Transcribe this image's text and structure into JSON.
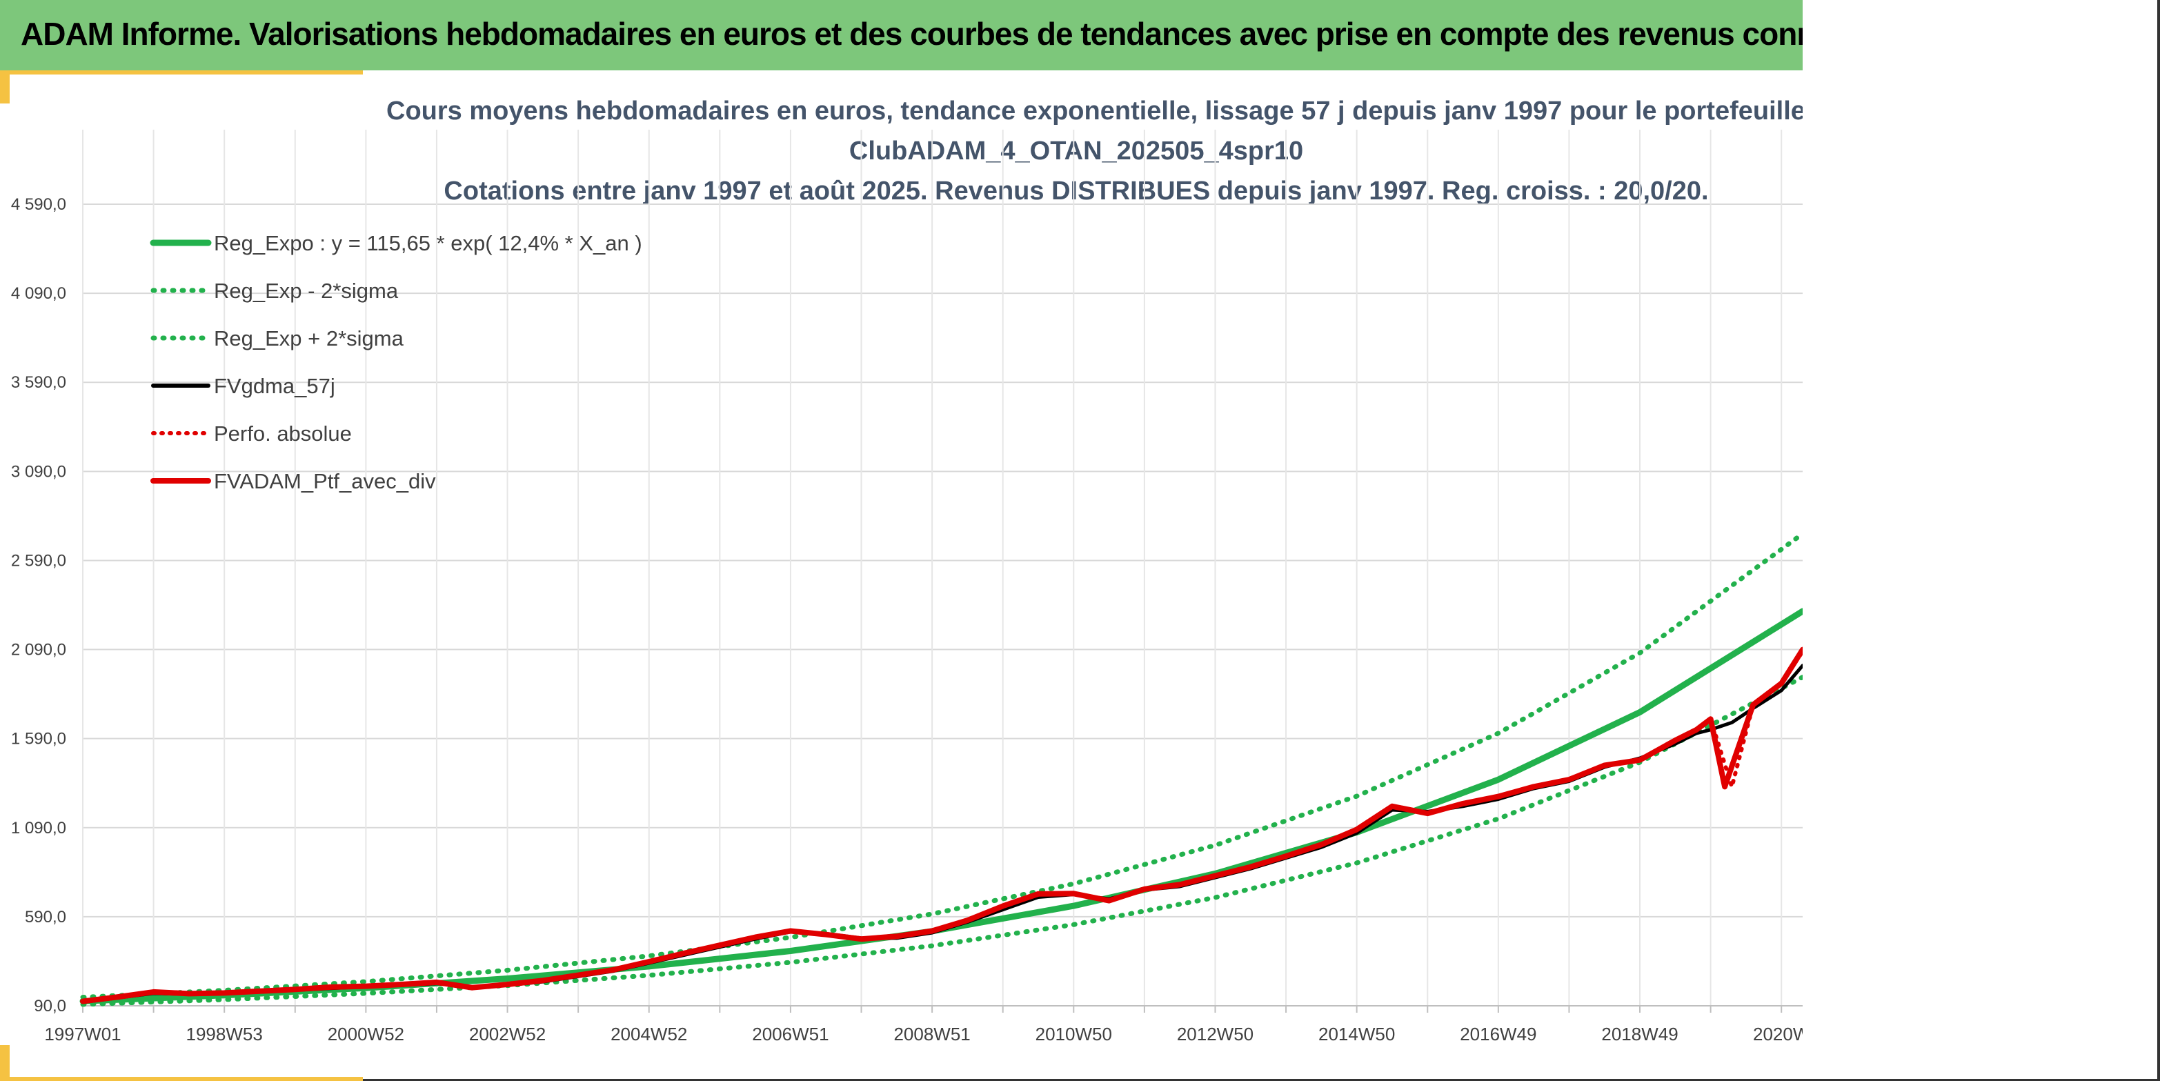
{
  "header": {
    "title": "ADAM Informe. Valorisations hebdomadaires en euros et des courbes de tendances avec prise en compte des revenus connus distribu"
  },
  "colors": {
    "header_bg": "#7dc77b",
    "accent": "#f5c242",
    "title_text": "#44546a",
    "trend_green": "#22b14c",
    "gdma_black": "#000000",
    "perf_red": "#e00000"
  },
  "chart_data": {
    "type": "line",
    "title_lines": [
      "Cours moyens hebdomadaires en euros, tendance exponentielle, lissage 57 j depuis janv 1997 pour le portefeuille",
      "ClubADAM_4_OTAN_202505_4spr10",
      "Cotations entre janv 1997 et août 2025. Revenus DISTRIBUES depuis janv 1997. Reg. croiss. : 20,0/20."
    ],
    "xlabel": "",
    "ylabel": "",
    "x_start_label": "1997W01",
    "x_range_years": [
      1997.0,
      2021.3
    ],
    "ylim": [
      90,
      4590
    ],
    "y_ticks": [
      "90,0",
      "590,0",
      "1 090,0",
      "1 590,0",
      "2 090,0",
      "2 590,0",
      "3 090,0",
      "3 590,0",
      "4 090,0",
      "4 590,0"
    ],
    "y_tick_values": [
      90,
      590,
      1090,
      1590,
      2090,
      2590,
      3090,
      3590,
      4090,
      4590
    ],
    "x_ticks": [
      "1997W01",
      "1998W53",
      "2000W52",
      "2002W52",
      "2004W52",
      "2006W51",
      "2008W51",
      "2010W50",
      "2012W50",
      "2014W50",
      "2016W49",
      "2018W49",
      "2020W"
    ],
    "x_tick_years": [
      1997.0,
      1999.0,
      2001.0,
      2003.0,
      2005.0,
      2007.0,
      2009.0,
      2011.0,
      2013.0,
      2015.0,
      2017.0,
      2019.0,
      2021.0
    ],
    "grid": true,
    "legend_position": "top-left",
    "legend": [
      {
        "label": "Reg_Expo : y = 115,65 * exp( 12,4% *  X_an )",
        "color": "#22b14c",
        "style": "solid"
      },
      {
        "label": "Reg_Exp - 2*sigma",
        "color": "#22b14c",
        "style": "dotted"
      },
      {
        "label": "Reg_Exp + 2*sigma",
        "color": "#22b14c",
        "style": "dotted"
      },
      {
        "label": "FVgdma_57j",
        "color": "#000000",
        "style": "solid"
      },
      {
        "label": "Perfo. absolue",
        "color": "#e00000",
        "style": "dotted"
      },
      {
        "label": "FVADAM_Ptf_avec_div",
        "color": "#e00000",
        "style": "solid"
      }
    ],
    "series": [
      {
        "name": "Reg_Expo : y = 115,65 * exp( 12,4% *  X_an )",
        "x": [
          1997.0,
          1999.0,
          2001.0,
          2003.0,
          2005.0,
          2007.0,
          2009.0,
          2011.0,
          2013.0,
          2015.0,
          2017.0,
          2019.0,
          2021.3
        ],
        "values": [
          116,
          149,
          190,
          243,
          311,
          398,
          509,
          651,
          832,
          1064,
          1360,
          1738,
          2305
        ]
      },
      {
        "name": "Reg_Exp - 2*sigma",
        "x": [
          1997.0,
          1999.0,
          2001.0,
          2003.0,
          2005.0,
          2007.0,
          2009.0,
          2011.0,
          2013.0,
          2015.0,
          2017.0,
          2019.0,
          2021.3
        ],
        "values": [
          98,
          125,
          160,
          204,
          261,
          334,
          427,
          546,
          698,
          892,
          1140,
          1457,
          1935
        ]
      },
      {
        "name": "Reg_Exp + 2*sigma",
        "x": [
          1997.0,
          1999.0,
          2001.0,
          2003.0,
          2005.0,
          2007.0,
          2009.0,
          2011.0,
          2013.0,
          2015.0,
          2017.0,
          2019.0,
          2021.3
        ],
        "values": [
          138,
          177,
          226,
          290,
          370,
          474,
          606,
          775,
          991,
          1267,
          1620,
          2071,
          2740
        ]
      },
      {
        "name": "FVgdma_57j",
        "x": [
          1997.0,
          1997.5,
          1998.0,
          1998.5,
          1999.0,
          1999.5,
          2000.0,
          2000.5,
          2001.0,
          2001.5,
          2002.0,
          2002.5,
          2003.0,
          2003.5,
          2004.0,
          2004.5,
          2005.0,
          2005.5,
          2006.0,
          2006.5,
          2007.0,
          2007.5,
          2008.0,
          2008.5,
          2009.0,
          2009.5,
          2010.0,
          2010.5,
          2011.0,
          2011.5,
          2012.0,
          2012.5,
          2013.0,
          2013.5,
          2014.0,
          2014.5,
          2015.0,
          2015.5,
          2016.0,
          2016.5,
          2017.0,
          2017.5,
          2018.0,
          2018.5,
          2019.0,
          2019.5,
          2019.8,
          2020.0,
          2020.3,
          2020.6,
          2021.0,
          2021.3
        ],
        "values": [
          110,
          135,
          160,
          155,
          158,
          168,
          178,
          188,
          198,
          205,
          215,
          195,
          205,
          225,
          255,
          285,
          330,
          375,
          420,
          465,
          505,
          495,
          470,
          470,
          500,
          560,
          630,
          700,
          715,
          690,
          740,
          760,
          810,
          860,
          920,
          980,
          1060,
          1190,
          1180,
          1210,
          1250,
          1310,
          1350,
          1430,
          1480,
          1560,
          1620,
          1640,
          1680,
          1760,
          1860,
          2000
        ]
      },
      {
        "name": "Perfo. absolue",
        "x": [
          1997.0,
          1997.5,
          1998.0,
          1998.5,
          1999.0,
          1999.5,
          2000.0,
          2000.5,
          2001.0,
          2001.5,
          2002.0,
          2002.5,
          2003.0,
          2003.5,
          2004.0,
          2004.5,
          2005.0,
          2005.5,
          2006.0,
          2006.5,
          2007.0,
          2007.5,
          2008.0,
          2008.5,
          2009.0,
          2009.5,
          2010.0,
          2010.5,
          2011.0,
          2011.5,
          2012.0,
          2012.5,
          2013.0,
          2013.5,
          2014.0,
          2014.5,
          2015.0,
          2015.5,
          2016.0,
          2016.5,
          2017.0,
          2017.5,
          2018.0,
          2018.5,
          2019.0,
          2019.5,
          2019.8,
          2020.0,
          2020.3,
          2020.6,
          2021.0,
          2021.3
        ],
        "values": [
          115,
          140,
          168,
          158,
          162,
          172,
          182,
          195,
          200,
          210,
          222,
          192,
          210,
          232,
          262,
          292,
          338,
          385,
          430,
          475,
          510,
          490,
          465,
          480,
          510,
          570,
          650,
          718,
          720,
          680,
          745,
          770,
          820,
          870,
          930,
          995,
          1080,
          1210,
          1170,
          1225,
          1265,
          1320,
          1360,
          1440,
          1470,
          1580,
          1640,
          1700,
          1320,
          1780,
          1900,
          2080
        ]
      },
      {
        "name": "FVADAM_Ptf_avec_div",
        "x": [
          1997.0,
          1997.5,
          1998.0,
          1998.5,
          1999.0,
          1999.5,
          2000.0,
          2000.5,
          2001.0,
          2001.5,
          2002.0,
          2002.5,
          2003.0,
          2003.5,
          2004.0,
          2004.5,
          2005.0,
          2005.5,
          2006.0,
          2006.5,
          2007.0,
          2007.5,
          2008.0,
          2008.5,
          2009.0,
          2009.5,
          2010.0,
          2010.5,
          2011.0,
          2011.5,
          2012.0,
          2012.5,
          2013.0,
          2013.5,
          2014.0,
          2014.5,
          2015.0,
          2015.5,
          2016.0,
          2016.5,
          2017.0,
          2017.5,
          2018.0,
          2018.5,
          2019.0,
          2019.5,
          2019.8,
          2020.0,
          2020.2,
          2020.6,
          2021.0,
          2021.3
        ],
        "values": [
          115,
          140,
          168,
          158,
          162,
          172,
          182,
          195,
          200,
          210,
          222,
          192,
          210,
          232,
          262,
          292,
          338,
          385,
          430,
          475,
          510,
          490,
          465,
          480,
          510,
          570,
          650,
          718,
          720,
          680,
          745,
          770,
          820,
          870,
          930,
          995,
          1080,
          1210,
          1170,
          1225,
          1265,
          1320,
          1360,
          1440,
          1470,
          1580,
          1640,
          1700,
          1320,
          1780,
          1900,
          2090
        ]
      }
    ]
  }
}
